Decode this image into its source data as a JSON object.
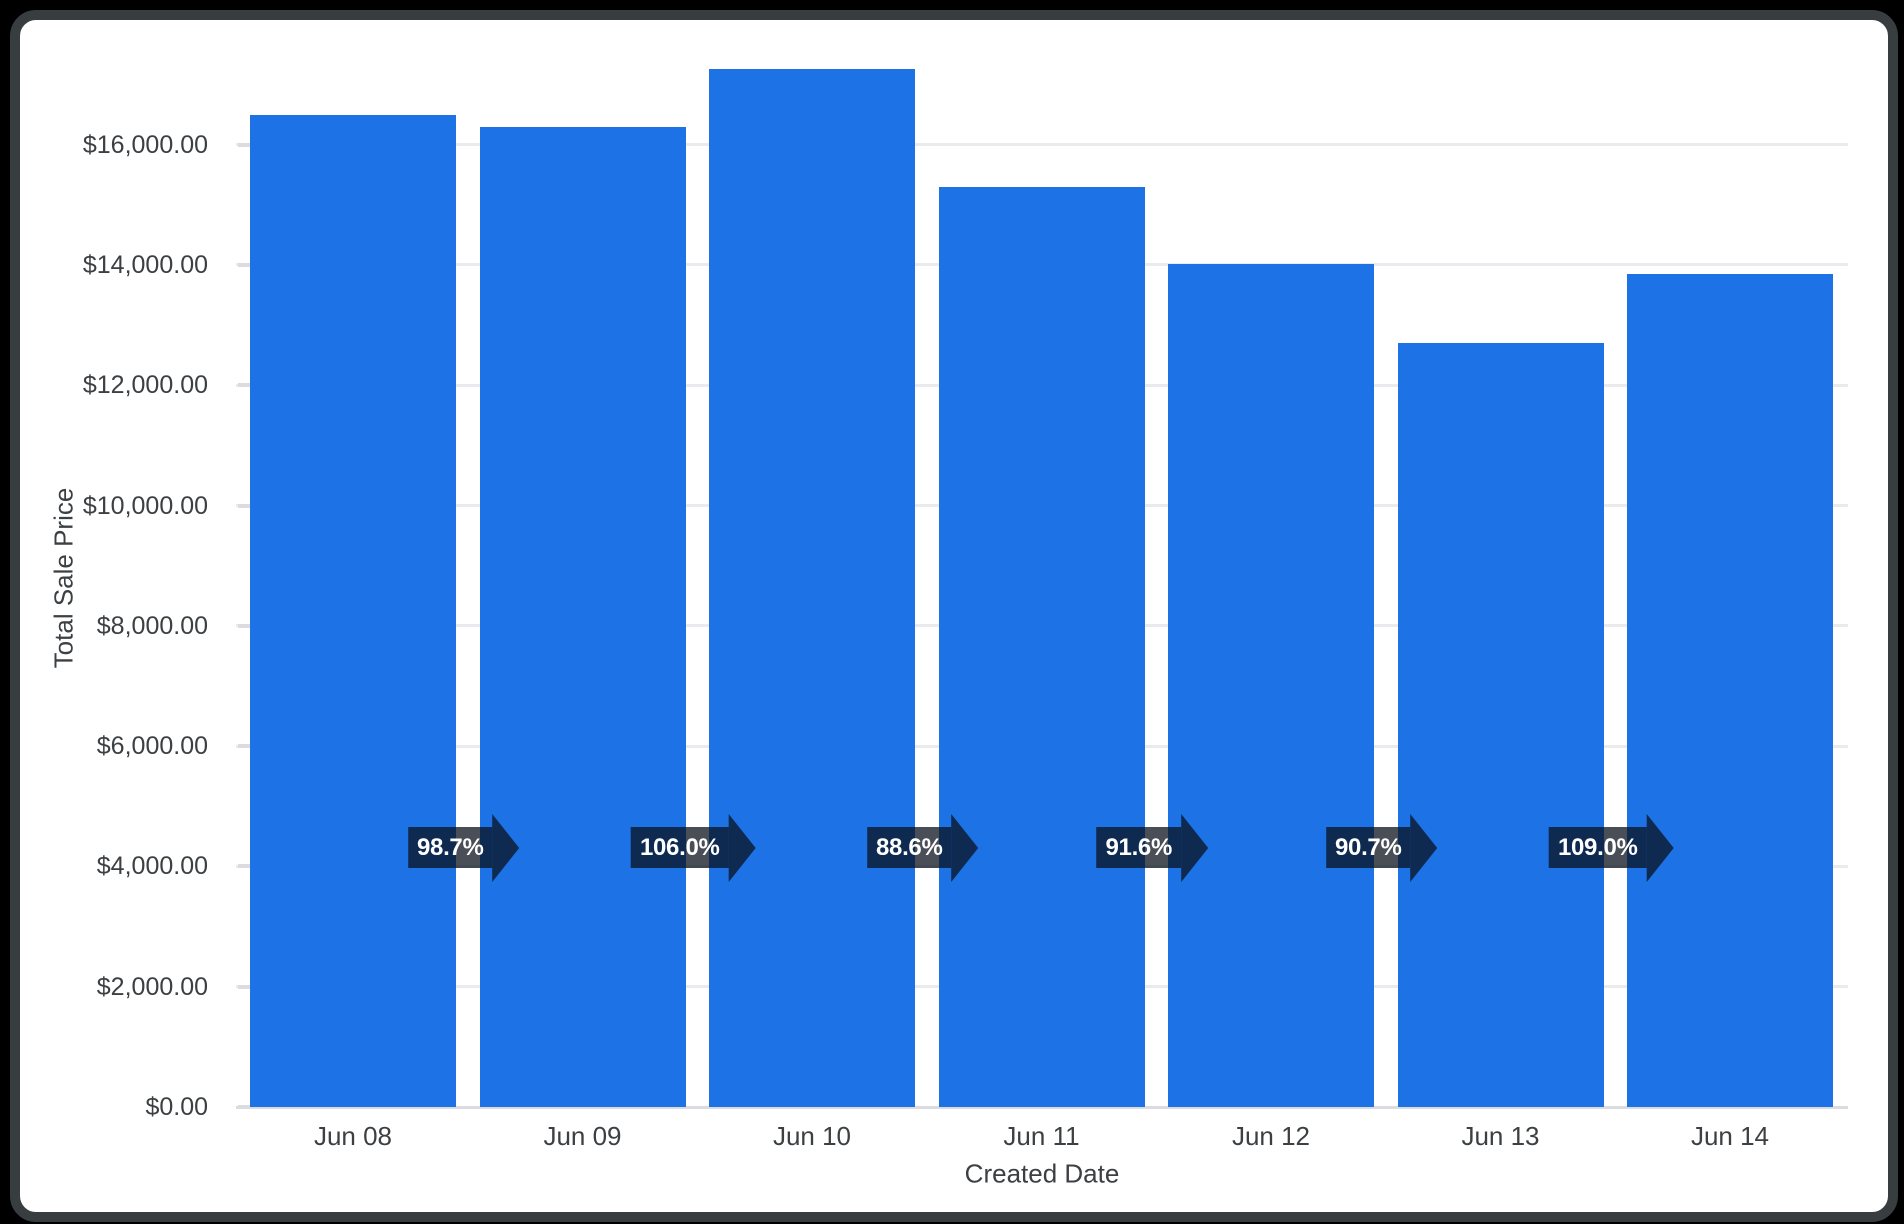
{
  "chart_data": {
    "type": "bar",
    "title": "",
    "xlabel": "Created Date",
    "ylabel": "Total Sale Price",
    "categories": [
      "Jun 08",
      "Jun 09",
      "Jun 10",
      "Jun 11",
      "Jun 12",
      "Jun 13",
      "Jun 14"
    ],
    "values": [
      16500,
      16286,
      17263,
      15295,
      14010,
      12707,
      13851
    ],
    "value_format": "currency_usd",
    "y_tick_labels": [
      "$0.00",
      "$2,000.00",
      "$4,000.00",
      "$6,000.00",
      "$8,000.00",
      "$10,000.00",
      "$12,000.00",
      "$14,000.00",
      "$16,000.00"
    ],
    "y_tick_step": 2000,
    "ylim": [
      0,
      17800
    ],
    "grid": "horizontal",
    "legend": "none",
    "growth_arrows": [
      {
        "label": "98.7%",
        "between": [
          "Jun 08",
          "Jun 09"
        ]
      },
      {
        "label": "106.0%",
        "between": [
          "Jun 09",
          "Jun 10"
        ]
      },
      {
        "label": "88.6%",
        "between": [
          "Jun 10",
          "Jun 11"
        ]
      },
      {
        "label": "91.6%",
        "between": [
          "Jun 11",
          "Jun 12"
        ]
      },
      {
        "label": "90.7%",
        "between": [
          "Jun 12",
          "Jun 13"
        ]
      },
      {
        "label": "109.0%",
        "between": [
          "Jun 13",
          "Jun 14"
        ]
      }
    ],
    "colors": {
      "bar": "#1d73e6",
      "arrow_fill": "rgba(10,16,28,0.74)",
      "arrow_text": "#ffffff",
      "gridline": "#e9ebee",
      "axis_line": "#dadce0",
      "tick_text": "#3c4043",
      "frame_border": "#383d40",
      "page_background": "#000000",
      "card_background": "#ffffff"
    }
  }
}
